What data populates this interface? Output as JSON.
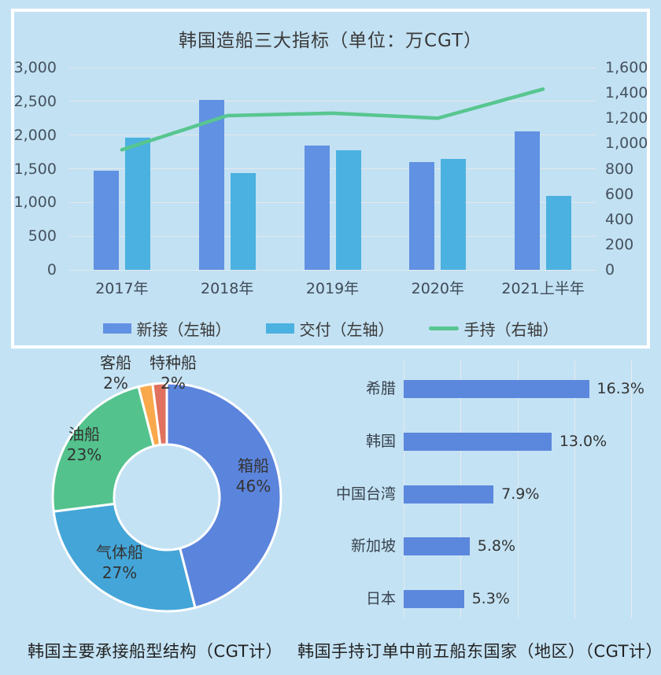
{
  "page": {
    "background": "#c3e2f4"
  },
  "chart_data": [
    {
      "type": "bar+line",
      "title": "韩国造船三大指标（单位：万CGT）",
      "categories": [
        "2017年",
        "2018年",
        "2019年",
        "2020年",
        "2021上半年"
      ],
      "series": [
        {
          "name": "新接（左轴）",
          "type": "bar",
          "axis": "left",
          "color": "#6191e2",
          "values": [
            1470,
            2520,
            1840,
            1600,
            2050
          ]
        },
        {
          "name": "交付（左轴）",
          "type": "bar",
          "axis": "left",
          "color": "#4bb1e0",
          "values": [
            1960,
            1440,
            1770,
            1650,
            1100
          ]
        },
        {
          "name": "手持（右轴）",
          "type": "line",
          "axis": "right",
          "color": "#57c690",
          "values": [
            950,
            1220,
            1240,
            1200,
            1430
          ]
        }
      ],
      "left_axis": {
        "min": 0,
        "max": 3000,
        "step": 500
      },
      "right_axis": {
        "min": 0,
        "max": 1600,
        "step": 200
      },
      "grid": "horizontal",
      "legend_position": "bottom"
    },
    {
      "type": "pie",
      "donut": true,
      "title": "韩国主要承接船型结构（CGT计）",
      "slices": [
        {
          "label": "箱船",
          "value": 46,
          "pct_label": "46%",
          "color": "#5b84dc"
        },
        {
          "label": "气体船",
          "value": 27,
          "pct_label": "27%",
          "color": "#44a5d8"
        },
        {
          "label": "油船",
          "value": 23,
          "pct_label": "23%",
          "color": "#53c28d"
        },
        {
          "label": "客船",
          "value": 2,
          "pct_label": "2%",
          "color": "#f9a84c"
        },
        {
          "label": "特种船",
          "value": 2,
          "pct_label": "2%",
          "color": "#e0715e"
        }
      ]
    },
    {
      "type": "bar-horizontal",
      "title": "韩国手持订单中前五船东国家（地区）（CGT计）",
      "categories": [
        "希腊",
        "韩国",
        "中国台湾",
        "新加坡",
        "日本"
      ],
      "values": [
        16.3,
        13.0,
        7.9,
        5.8,
        5.3
      ],
      "value_labels": [
        "16.3%",
        "13.0%",
        "7.9%",
        "5.8%",
        "5.3%"
      ],
      "xmax": 20,
      "grid_step": 5,
      "bar_color": "#5b87dd"
    }
  ]
}
